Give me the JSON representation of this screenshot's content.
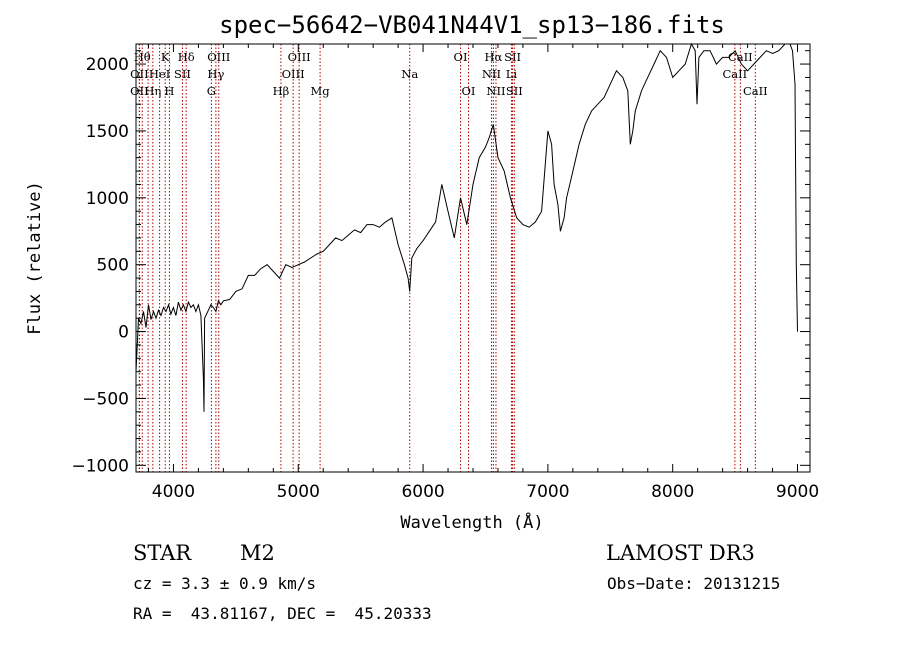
{
  "chart_data": {
    "type": "line",
    "title": "spec−56642−VB041N44V1_sp13−186.fits",
    "xlabel": "Wavelength (Å)",
    "ylabel": "Flux (relative)",
    "xlim": [
      3700,
      9100
    ],
    "ylim": [
      -1050,
      2150
    ],
    "xticks": [
      4000,
      5000,
      6000,
      7000,
      8000,
      9000
    ],
    "xtick_labels": [
      "4000",
      "5000",
      "6000",
      "7000",
      "8000",
      "9000"
    ],
    "yticks": [
      -1000,
      -500,
      0,
      500,
      1000,
      1500,
      2000
    ],
    "ytick_labels": [
      "−1000",
      "−500",
      "0",
      "500",
      "1000",
      "1500",
      "2000"
    ],
    "grid": false,
    "series": [
      {
        "name": "spectrum",
        "x": [
          3700,
          3720,
          3740,
          3760,
          3780,
          3800,
          3820,
          3840,
          3860,
          3880,
          3900,
          3920,
          3940,
          3960,
          3980,
          4000,
          4020,
          4040,
          4060,
          4080,
          4100,
          4120,
          4140,
          4160,
          4180,
          4200,
          4220,
          4240,
          4245,
          4250,
          4260,
          4280,
          4300,
          4320,
          4340,
          4360,
          4380,
          4400,
          4450,
          4500,
          4550,
          4600,
          4650,
          4700,
          4750,
          4800,
          4850,
          4900,
          4950,
          5000,
          5050,
          5100,
          5150,
          5200,
          5250,
          5300,
          5350,
          5400,
          5450,
          5500,
          5550,
          5600,
          5650,
          5700,
          5750,
          5800,
          5850,
          5880,
          5893,
          5910,
          5950,
          6000,
          6050,
          6100,
          6150,
          6200,
          6250,
          6300,
          6350,
          6400,
          6450,
          6500,
          6530,
          6563,
          6600,
          6650,
          6700,
          6750,
          6800,
          6850,
          6900,
          6950,
          7000,
          7030,
          7050,
          7080,
          7100,
          7130,
          7150,
          7200,
          7250,
          7300,
          7350,
          7400,
          7450,
          7500,
          7550,
          7600,
          7640,
          7660,
          7680,
          7700,
          7750,
          7800,
          7850,
          7900,
          7950,
          8000,
          8050,
          8100,
          8150,
          8180,
          8195,
          8210,
          8250,
          8300,
          8350,
          8400,
          8450,
          8500,
          8550,
          8600,
          8650,
          8700,
          8750,
          8800,
          8850,
          8900,
          8940,
          8960,
          8980,
          8990,
          9000
        ],
        "y": [
          -300,
          100,
          60,
          150,
          30,
          200,
          90,
          150,
          100,
          160,
          120,
          180,
          150,
          200,
          130,
          180,
          120,
          220,
          160,
          200,
          150,
          220,
          180,
          200,
          150,
          200,
          120,
          -350,
          -600,
          100,
          120,
          160,
          200,
          180,
          150,
          230,
          200,
          230,
          240,
          300,
          320,
          420,
          420,
          470,
          500,
          450,
          400,
          500,
          480,
          500,
          520,
          550,
          580,
          600,
          650,
          700,
          680,
          720,
          760,
          740,
          800,
          800,
          780,
          820,
          850,
          650,
          500,
          400,
          300,
          550,
          620,
          680,
          750,
          820,
          1100,
          900,
          700,
          1000,
          800,
          1100,
          1300,
          1380,
          1450,
          1550,
          1300,
          1200,
          1000,
          850,
          800,
          780,
          820,
          900,
          1500,
          1400,
          1100,
          950,
          750,
          850,
          1000,
          1200,
          1400,
          1550,
          1650,
          1700,
          1750,
          1850,
          1950,
          1900,
          1800,
          1400,
          1500,
          1650,
          1800,
          1900,
          2000,
          2100,
          2050,
          1900,
          1950,
          2000,
          2150,
          2100,
          1700,
          2050,
          2100,
          2100,
          2000,
          2050,
          2050,
          2100,
          2000,
          1950,
          2000,
          2050,
          2100,
          2080,
          2100,
          2150,
          2150,
          2100,
          1850,
          500,
          0
        ]
      }
    ],
    "line_markers": [
      {
        "wavelength": 3750,
        "label": "Hθ",
        "row": 0
      },
      {
        "wavelength": 3727,
        "label": "OII",
        "row": 1
      },
      {
        "wavelength": 3727,
        "label": "OII",
        "row": 2
      },
      {
        "wavelength": 3797,
        "label": "",
        "row": -1
      },
      {
        "wavelength": 3835,
        "label": "Hη",
        "row": 2
      },
      {
        "wavelength": 3889,
        "label": "HeI",
        "row": 1
      },
      {
        "wavelength": 3934,
        "label": "K",
        "row": 0
      },
      {
        "wavelength": 3968,
        "label": "H",
        "row": 2
      },
      {
        "wavelength": 4072,
        "label": "SII",
        "row": 1
      },
      {
        "wavelength": 4102,
        "label": "Hδ",
        "row": 0
      },
      {
        "wavelength": 4304,
        "label": "G",
        "row": 2
      },
      {
        "wavelength": 4340,
        "label": "Hγ",
        "row": 1
      },
      {
        "wavelength": 4363,
        "label": "OIII",
        "row": 0
      },
      {
        "wavelength": 4861,
        "label": "Hβ",
        "row": 2
      },
      {
        "wavelength": 4959,
        "label": "OIII",
        "row": 1
      },
      {
        "wavelength": 5007,
        "label": "OIII",
        "row": 0
      },
      {
        "wavelength": 5175,
        "label": "Mg",
        "row": 2
      },
      {
        "wavelength": 5893,
        "label": "Na",
        "row": 1
      },
      {
        "wavelength": 6300,
        "label": "OI",
        "row": 0
      },
      {
        "wavelength": 6364,
        "label": "OI",
        "row": 2
      },
      {
        "wavelength": 6548,
        "label": "NII",
        "row": 1
      },
      {
        "wavelength": 6563,
        "label": "Hα",
        "row": 0
      },
      {
        "wavelength": 6584,
        "label": "NII",
        "row": 2
      },
      {
        "wavelength": 6708,
        "label": "Li",
        "row": 1
      },
      {
        "wavelength": 6717,
        "label": "SII",
        "row": 0
      },
      {
        "wavelength": 6731,
        "label": "SII",
        "row": 2
      },
      {
        "wavelength": 8498,
        "label": "CaII",
        "row": 1
      },
      {
        "wavelength": 8542,
        "label": "CaII",
        "row": 0
      },
      {
        "wavelength": 8662,
        "label": "CaII",
        "row": 2
      }
    ]
  },
  "info": {
    "object_class": "STAR",
    "subclass": "M2",
    "survey": "LAMOST DR3",
    "cz": "cz = 3.3 ± 0.9 km/s",
    "obs_date": "Obs−Date: 20131215",
    "coords": "RA =  43.81167, DEC =  45.20333"
  }
}
